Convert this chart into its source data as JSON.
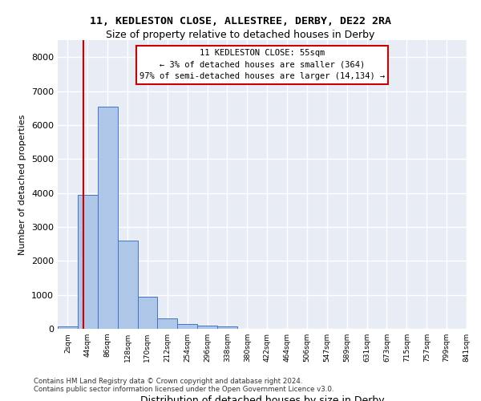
{
  "title_line1": "11, KEDLESTON CLOSE, ALLESTREE, DERBY, DE22 2RA",
  "title_line2": "Size of property relative to detached houses in Derby",
  "xlabel": "Distribution of detached houses by size in Derby",
  "ylabel": "Number of detached properties",
  "footnote": "Contains HM Land Registry data © Crown copyright and database right 2024.\nContains public sector information licensed under the Open Government Licence v3.0.",
  "annotation_title": "11 KEDLESTON CLOSE: 55sqm",
  "annotation_line2": "← 3% of detached houses are smaller (364)",
  "annotation_line3": "97% of semi-detached houses are larger (14,134) →",
  "bar_values": [
    75,
    3950,
    6550,
    2600,
    950,
    310,
    130,
    100,
    75,
    0,
    0,
    0,
    0,
    0,
    0,
    0,
    0,
    0,
    0,
    0
  ],
  "bin_labels": [
    "2sqm",
    "44sqm",
    "86sqm",
    "128sqm",
    "170sqm",
    "212sqm",
    "254sqm",
    "296sqm",
    "338sqm",
    "380sqm",
    "422sqm",
    "464sqm",
    "506sqm",
    "547sqm",
    "589sqm",
    "631sqm",
    "673sqm",
    "715sqm",
    "757sqm",
    "799sqm",
    "841sqm"
  ],
  "bar_color": "#aec6e8",
  "bar_edgecolor": "#4472c4",
  "bg_color": "#e8edf5",
  "grid_color": "#ffffff",
  "vline_x": 1,
  "vline_color": "#cc0000",
  "annotation_box_color": "#cc0000",
  "ylim": [
    0,
    8500
  ],
  "yticks": [
    0,
    1000,
    2000,
    3000,
    4000,
    5000,
    6000,
    7000,
    8000
  ]
}
